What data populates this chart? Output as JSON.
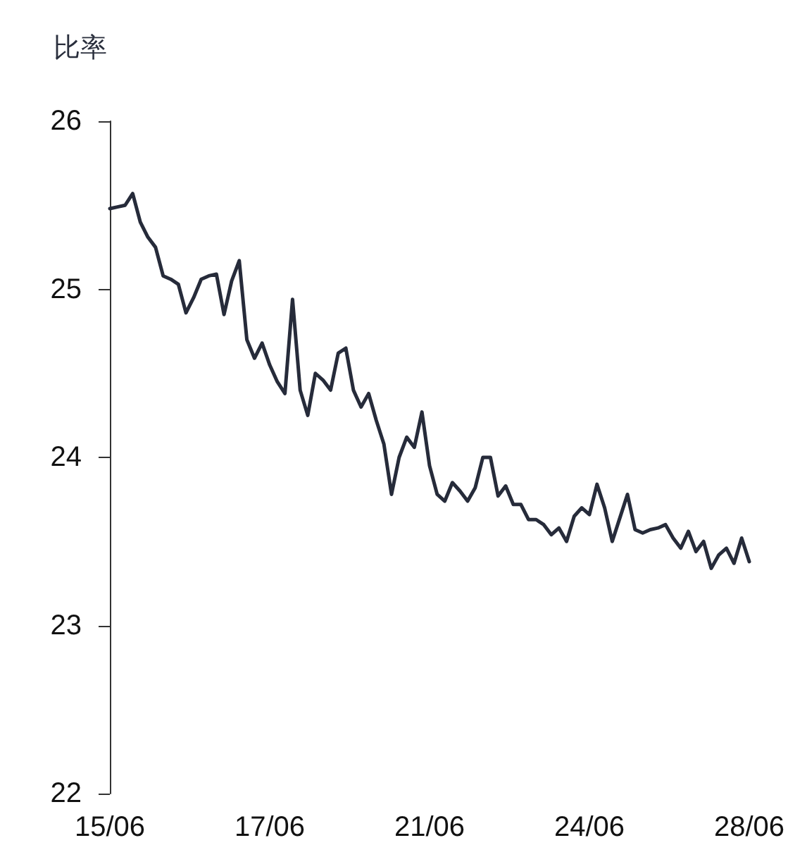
{
  "chart_data": {
    "type": "line",
    "ylabel": "比率",
    "categories": [
      "15/06",
      null,
      null,
      null,
      null,
      null,
      null,
      null,
      null,
      null,
      null,
      null,
      null,
      null,
      null,
      null,
      null,
      null,
      null,
      null,
      null,
      "17/06",
      null,
      null,
      null,
      null,
      null,
      null,
      null,
      null,
      null,
      null,
      null,
      null,
      null,
      null,
      null,
      null,
      null,
      null,
      null,
      null,
      "21/06",
      null,
      null,
      null,
      null,
      null,
      null,
      null,
      null,
      null,
      null,
      null,
      null,
      null,
      null,
      null,
      null,
      null,
      null,
      null,
      null,
      "24/06",
      null,
      null,
      null,
      null,
      null,
      null,
      null,
      null,
      null,
      null,
      null,
      null,
      null,
      null,
      null,
      null,
      null,
      null,
      null,
      null,
      "28/06"
    ],
    "series": [
      {
        "color": "#262b3a",
        "values": [
          25.48,
          25.49,
          25.5,
          25.57,
          25.4,
          25.31,
          25.25,
          25.08,
          25.06,
          25.03,
          24.86,
          24.95,
          25.06,
          25.08,
          25.09,
          24.85,
          25.05,
          25.17,
          24.7,
          24.59,
          24.68,
          24.55,
          24.45,
          24.38,
          24.94,
          24.4,
          24.25,
          24.5,
          24.46,
          24.4,
          24.62,
          24.65,
          24.4,
          24.3,
          24.38,
          24.22,
          24.08,
          23.78,
          24.0,
          24.12,
          24.06,
          24.27,
          23.95,
          23.78,
          23.74,
          23.85,
          23.8,
          23.74,
          23.82,
          24.0,
          24.0,
          23.77,
          23.83,
          23.72,
          23.72,
          23.63,
          23.63,
          23.6,
          23.54,
          23.58,
          23.5,
          23.65,
          23.7,
          23.66,
          23.84,
          23.7,
          23.5,
          23.64,
          23.78,
          23.57,
          23.55,
          23.57,
          23.58,
          23.6,
          23.52,
          23.46,
          23.56,
          23.44,
          23.5,
          23.34,
          23.42,
          23.46,
          23.37,
          23.52,
          23.38
        ]
      }
    ],
    "ylim": [
      22,
      26
    ],
    "yticks": [
      22,
      23,
      24,
      25,
      26
    ],
    "grid": false,
    "marker": "none",
    "line_style": "solid"
  }
}
